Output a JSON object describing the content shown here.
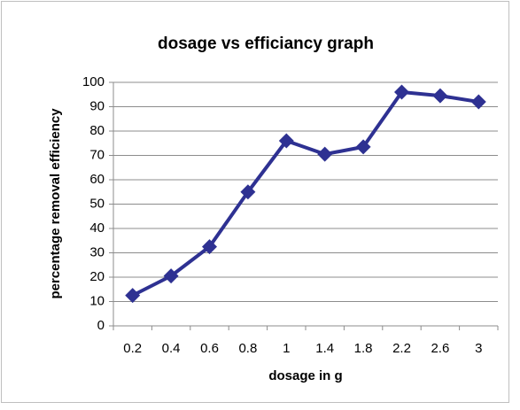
{
  "chart_data": {
    "type": "line",
    "title": "dosage vs efficiancy graph",
    "x_label": "dosage in g",
    "y_label": "percentage removal efficiency",
    "categories": [
      "0.2",
      "0.4",
      "0.6",
      "0.8",
      "1",
      "1.4",
      "1.8",
      "2.2",
      "2.6",
      "3"
    ],
    "values": [
      12.5,
      20.5,
      32.5,
      55,
      76,
      70.5,
      73.5,
      96,
      94.5,
      92
    ],
    "color": "#2e3192",
    "ylim": [
      0,
      100
    ],
    "yticks": [
      0,
      10,
      20,
      30,
      40,
      50,
      60,
      70,
      80,
      90,
      100
    ],
    "grid": true
  }
}
